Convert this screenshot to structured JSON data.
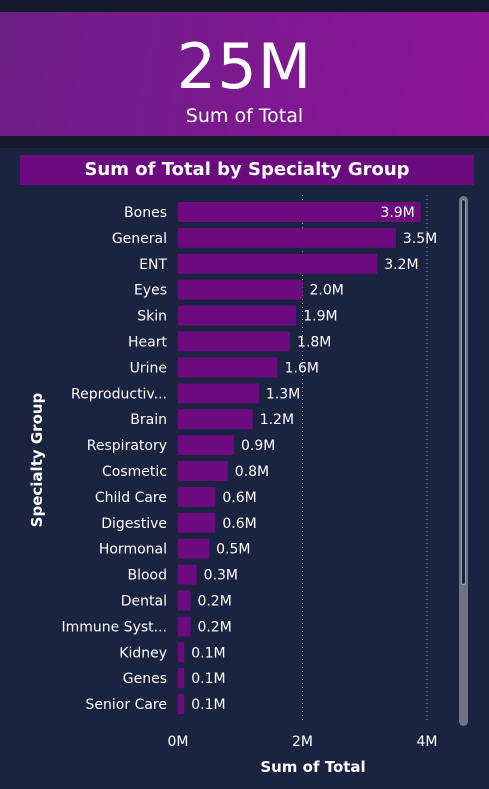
{
  "kpi": {
    "value": "25M",
    "label": "Sum of Total"
  },
  "colors": {
    "bar": "#6b0b7f",
    "kpi_start": "#6c1f86",
    "kpi_end": "#8e1499",
    "background": "#1a2340"
  },
  "chart_data": {
    "type": "bar",
    "orientation": "horizontal",
    "title": "Sum of Total by Specialty Group",
    "xlabel": "Sum of Total",
    "ylabel": "Specialty Group",
    "xlim": [
      0,
      4.5
    ],
    "x_ticks": [
      0,
      2,
      4
    ],
    "x_tick_labels": [
      "0M",
      "2M",
      "4M"
    ],
    "grid": true,
    "categories": [
      "Bones",
      "General",
      "ENT",
      "Eyes",
      "Skin",
      "Heart",
      "Urine",
      "Reproductiv...",
      "Brain",
      "Respiratory",
      "Cosmetic",
      "Child Care",
      "Digestive",
      "Hormonal",
      "Blood",
      "Dental",
      "Immune Syst...",
      "Kidney",
      "Genes",
      "Senior Care"
    ],
    "values": [
      3.9,
      3.5,
      3.2,
      2.0,
      1.9,
      1.8,
      1.6,
      1.3,
      1.2,
      0.9,
      0.8,
      0.6,
      0.6,
      0.5,
      0.3,
      0.2,
      0.2,
      0.1,
      0.1,
      0.1
    ],
    "data_labels": [
      "3.9M",
      "3.5M",
      "3.2M",
      "2.0M",
      "1.9M",
      "1.8M",
      "1.6M",
      "1.3M",
      "1.2M",
      "0.9M",
      "0.8M",
      "0.6M",
      "0.6M",
      "0.5M",
      "0.3M",
      "0.2M",
      "0.2M",
      "0.1M",
      "0.1M",
      "0.1M"
    ]
  }
}
